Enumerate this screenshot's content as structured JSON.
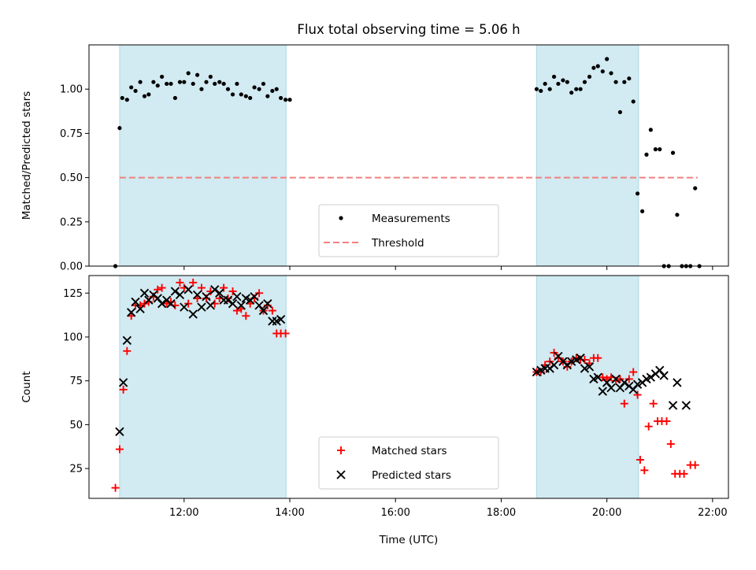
{
  "chart_data": {
    "title": "Flux total observing time = 5.06 h",
    "type": "scatter",
    "shaded_periods": [
      [
        10.78,
        13.93
      ],
      [
        18.67,
        20.6
      ]
    ],
    "shade_color": "#add8e6",
    "x_ticks": [
      12,
      14,
      16,
      18,
      20,
      22
    ],
    "x_tick_labels": [
      "12:00",
      "14:00",
      "16:00",
      "18:00",
      "20:00",
      "22:00"
    ],
    "xlabel": "Time (UTC)",
    "xlim": [
      10.2,
      22.3
    ],
    "panels": [
      {
        "ylabel": "Matched/Predicted stars",
        "ylim": [
          0,
          1.25
        ],
        "y_ticks": [
          0,
          0.25,
          0.5,
          0.75,
          1.0
        ],
        "y_tick_labels": [
          "0.00",
          "0.25",
          "0.50",
          "0.75",
          "1.00"
        ],
        "legend_position": "lower-center",
        "series": [
          {
            "name": "Measurements",
            "marker": "dot",
            "color": "#000000",
            "points": [
              [
                10.7,
                0.0
              ],
              [
                10.78,
                0.78
              ],
              [
                10.83,
                0.95
              ],
              [
                10.92,
                0.94
              ],
              [
                11.0,
                1.01
              ],
              [
                11.08,
                0.99
              ],
              [
                11.17,
                1.04
              ],
              [
                11.25,
                0.96
              ],
              [
                11.33,
                0.97
              ],
              [
                11.42,
                1.04
              ],
              [
                11.5,
                1.02
              ],
              [
                11.58,
                1.07
              ],
              [
                11.67,
                1.03
              ],
              [
                11.75,
                1.03
              ],
              [
                11.83,
                0.95
              ],
              [
                11.92,
                1.04
              ],
              [
                12.0,
                1.04
              ],
              [
                12.08,
                1.09
              ],
              [
                12.17,
                1.03
              ],
              [
                12.25,
                1.08
              ],
              [
                12.33,
                1.0
              ],
              [
                12.42,
                1.04
              ],
              [
                12.5,
                1.07
              ],
              [
                12.58,
                1.03
              ],
              [
                12.67,
                1.04
              ],
              [
                12.75,
                1.03
              ],
              [
                12.83,
                1.0
              ],
              [
                12.92,
                0.97
              ],
              [
                13.0,
                1.03
              ],
              [
                13.08,
                0.97
              ],
              [
                13.17,
                0.96
              ],
              [
                13.25,
                0.95
              ],
              [
                13.33,
                1.01
              ],
              [
                13.42,
                1.0
              ],
              [
                13.5,
                1.03
              ],
              [
                13.58,
                0.96
              ],
              [
                13.67,
                0.99
              ],
              [
                13.75,
                1.0
              ],
              [
                13.83,
                0.95
              ],
              [
                13.92,
                0.94
              ],
              [
                14.0,
                0.94
              ],
              [
                18.67,
                1.0
              ],
              [
                18.75,
                0.99
              ],
              [
                18.83,
                1.03
              ],
              [
                18.92,
                1.0
              ],
              [
                19.0,
                1.07
              ],
              [
                19.08,
                1.03
              ],
              [
                19.17,
                1.05
              ],
              [
                19.25,
                1.04
              ],
              [
                19.33,
                0.98
              ],
              [
                19.42,
                1.0
              ],
              [
                19.5,
                1.0
              ],
              [
                19.58,
                1.04
              ],
              [
                19.67,
                1.07
              ],
              [
                19.75,
                1.12
              ],
              [
                19.83,
                1.13
              ],
              [
                19.92,
                1.1
              ],
              [
                20.0,
                1.17
              ],
              [
                20.08,
                1.09
              ],
              [
                20.17,
                1.04
              ],
              [
                20.25,
                0.87
              ],
              [
                20.33,
                1.04
              ],
              [
                20.42,
                1.06
              ],
              [
                20.5,
                0.93
              ],
              [
                20.58,
                0.41
              ],
              [
                20.67,
                0.31
              ],
              [
                20.75,
                0.63
              ],
              [
                20.83,
                0.77
              ],
              [
                20.92,
                0.66
              ],
              [
                21.0,
                0.66
              ],
              [
                21.08,
                0.0
              ],
              [
                21.17,
                0.0
              ],
              [
                21.25,
                0.64
              ],
              [
                21.33,
                0.29
              ],
              [
                21.42,
                0.0
              ],
              [
                21.5,
                0.0
              ],
              [
                21.58,
                0.0
              ],
              [
                21.67,
                0.44
              ],
              [
                21.75,
                0.0
              ]
            ]
          },
          {
            "name": "Threshold",
            "marker": "dashed-line",
            "color": "#f08080",
            "x": [
              10.78,
              21.72
            ],
            "y": 0.5
          }
        ]
      },
      {
        "ylabel": "Count",
        "ylim": [
          8,
          135
        ],
        "y_ticks": [
          25,
          50,
          75,
          100,
          125
        ],
        "y_tick_labels": [
          "25",
          "50",
          "75",
          "100",
          "125"
        ],
        "legend_position": "lower-center",
        "series": [
          {
            "name": "Matched stars",
            "marker": "plus",
            "color": "#ff0000",
            "points": [
              [
                10.7,
                14
              ],
              [
                10.78,
                36
              ],
              [
                10.85,
                70
              ],
              [
                10.92,
                92
              ],
              [
                11.0,
                112
              ],
              [
                11.08,
                118
              ],
              [
                11.17,
                118
              ],
              [
                11.25,
                119
              ],
              [
                11.33,
                120
              ],
              [
                11.42,
                123
              ],
              [
                11.5,
                127
              ],
              [
                11.58,
                128
              ],
              [
                11.67,
                119
              ],
              [
                11.75,
                120
              ],
              [
                11.83,
                118
              ],
              [
                11.92,
                131
              ],
              [
                12.0,
                128
              ],
              [
                12.08,
                119
              ],
              [
                12.17,
                131
              ],
              [
                12.25,
                122
              ],
              [
                12.33,
                128
              ],
              [
                12.42,
                122
              ],
              [
                12.5,
                126
              ],
              [
                12.58,
                119
              ],
              [
                12.67,
                122
              ],
              [
                12.75,
                128
              ],
              [
                12.83,
                122
              ],
              [
                12.92,
                126
              ],
              [
                13.0,
                115
              ],
              [
                13.08,
                116
              ],
              [
                13.17,
                112
              ],
              [
                13.25,
                119
              ],
              [
                13.33,
                122
              ],
              [
                13.42,
                125
              ],
              [
                13.5,
                115
              ],
              [
                13.58,
                118
              ],
              [
                13.67,
                115
              ],
              [
                13.75,
                102
              ],
              [
                13.83,
                102
              ],
              [
                13.92,
                102
              ],
              [
                18.67,
                80
              ],
              [
                18.75,
                80
              ],
              [
                18.83,
                84
              ],
              [
                18.92,
                86
              ],
              [
                19.0,
                91
              ],
              [
                19.08,
                88
              ],
              [
                19.17,
                86
              ],
              [
                19.25,
                83
              ],
              [
                19.33,
                86
              ],
              [
                19.42,
                88
              ],
              [
                19.5,
                87
              ],
              [
                19.58,
                87
              ],
              [
                19.67,
                85
              ],
              [
                19.75,
                88
              ],
              [
                19.83,
                88
              ],
              [
                19.92,
                77
              ],
              [
                20.0,
                76
              ],
              [
                20.08,
                77
              ],
              [
                20.17,
                75
              ],
              [
                20.25,
                76
              ],
              [
                20.33,
                62
              ],
              [
                20.42,
                76
              ],
              [
                20.5,
                80
              ],
              [
                20.58,
                67
              ],
              [
                20.63,
                30
              ],
              [
                20.71,
                24
              ],
              [
                20.79,
                49
              ],
              [
                20.88,
                62
              ],
              [
                20.96,
                52
              ],
              [
                21.04,
                52
              ],
              [
                21.13,
                52
              ],
              [
                21.21,
                39
              ],
              [
                21.29,
                22
              ],
              [
                21.38,
                22
              ],
              [
                21.46,
                22
              ],
              [
                21.58,
                27
              ],
              [
                21.67,
                27
              ]
            ]
          },
          {
            "name": "Predicted stars",
            "marker": "x",
            "color": "#000000",
            "points": [
              [
                10.78,
                46
              ],
              [
                10.85,
                74
              ],
              [
                10.92,
                98
              ],
              [
                11.0,
                114
              ],
              [
                11.08,
                120
              ],
              [
                11.17,
                116
              ],
              [
                11.25,
                125
              ],
              [
                11.33,
                121
              ],
              [
                11.42,
                124
              ],
              [
                11.5,
                122
              ],
              [
                11.58,
                119
              ],
              [
                11.67,
                121
              ],
              [
                11.75,
                119
              ],
              [
                11.83,
                126
              ],
              [
                11.92,
                124
              ],
              [
                12.0,
                117
              ],
              [
                12.08,
                127
              ],
              [
                12.17,
                113
              ],
              [
                12.25,
                124
              ],
              [
                12.33,
                117
              ],
              [
                12.42,
                123
              ],
              [
                12.5,
                118
              ],
              [
                12.58,
                127
              ],
              [
                12.67,
                125
              ],
              [
                12.75,
                121
              ],
              [
                12.83,
                121
              ],
              [
                12.92,
                119
              ],
              [
                13.0,
                123
              ],
              [
                13.08,
                118
              ],
              [
                13.17,
                122
              ],
              [
                13.25,
                121
              ],
              [
                13.33,
                123
              ],
              [
                13.42,
                118
              ],
              [
                13.5,
                115
              ],
              [
                13.58,
                119
              ],
              [
                13.67,
                109
              ],
              [
                13.75,
                109
              ],
              [
                13.83,
                110
              ],
              [
                18.67,
                80
              ],
              [
                18.75,
                81
              ],
              [
                18.83,
                82
              ],
              [
                18.92,
                82
              ],
              [
                19.0,
                84
              ],
              [
                19.08,
                89
              ],
              [
                19.17,
                86
              ],
              [
                19.25,
                84
              ],
              [
                19.33,
                86
              ],
              [
                19.42,
                87
              ],
              [
                19.5,
                88
              ],
              [
                19.58,
                82
              ],
              [
                19.67,
                83
              ],
              [
                19.75,
                76
              ],
              [
                19.83,
                77
              ],
              [
                19.92,
                69
              ],
              [
                20.0,
                74
              ],
              [
                20.08,
                71
              ],
              [
                20.17,
                76
              ],
              [
                20.25,
                71
              ],
              [
                20.33,
                74
              ],
              [
                20.42,
                72
              ],
              [
                20.5,
                70
              ],
              [
                20.58,
                73
              ],
              [
                20.67,
                74
              ],
              [
                20.75,
                76
              ],
              [
                20.83,
                77
              ],
              [
                20.92,
                79
              ],
              [
                21.0,
                81
              ],
              [
                21.08,
                78
              ],
              [
                21.25,
                61
              ],
              [
                21.33,
                74
              ],
              [
                21.5,
                61
              ]
            ]
          }
        ]
      }
    ]
  }
}
